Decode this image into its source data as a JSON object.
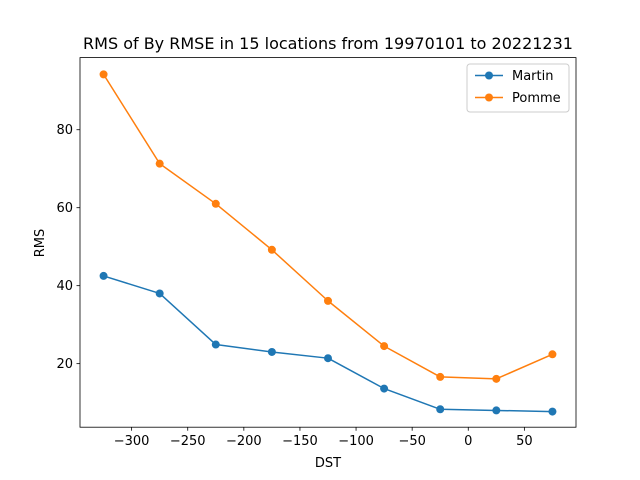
{
  "chart_data": {
    "type": "line",
    "title": "RMS of By RMSE in 15 locations from 19970101 to 20221231",
    "xlabel": "DST",
    "ylabel": "RMS",
    "xlim": [
      -346,
      96
    ],
    "ylim": [
      3.7,
      98.5
    ],
    "xticks": [
      -300,
      -250,
      -200,
      -150,
      -100,
      -50,
      0,
      50
    ],
    "xtick_labels": [
      "−300",
      "−250",
      "−200",
      "−150",
      "−100",
      "−50",
      "0",
      "50"
    ],
    "yticks": [
      20,
      40,
      60,
      80
    ],
    "ytick_labels": [
      "20",
      "40",
      "60",
      "80"
    ],
    "grid": false,
    "legend_position": "upper-right",
    "x": [
      -325,
      -275,
      -225,
      -175,
      -125,
      -75,
      -25,
      25,
      75
    ],
    "series": [
      {
        "name": "Martin",
        "color": "#1f77b4",
        "values": [
          42.5,
          38.0,
          24.9,
          23.0,
          21.4,
          13.6,
          8.3,
          8.0,
          7.7
        ]
      },
      {
        "name": "Pomme",
        "color": "#ff7f0e",
        "values": [
          94.2,
          71.3,
          61.0,
          49.2,
          36.1,
          24.5,
          16.6,
          16.1,
          22.4
        ]
      }
    ]
  }
}
